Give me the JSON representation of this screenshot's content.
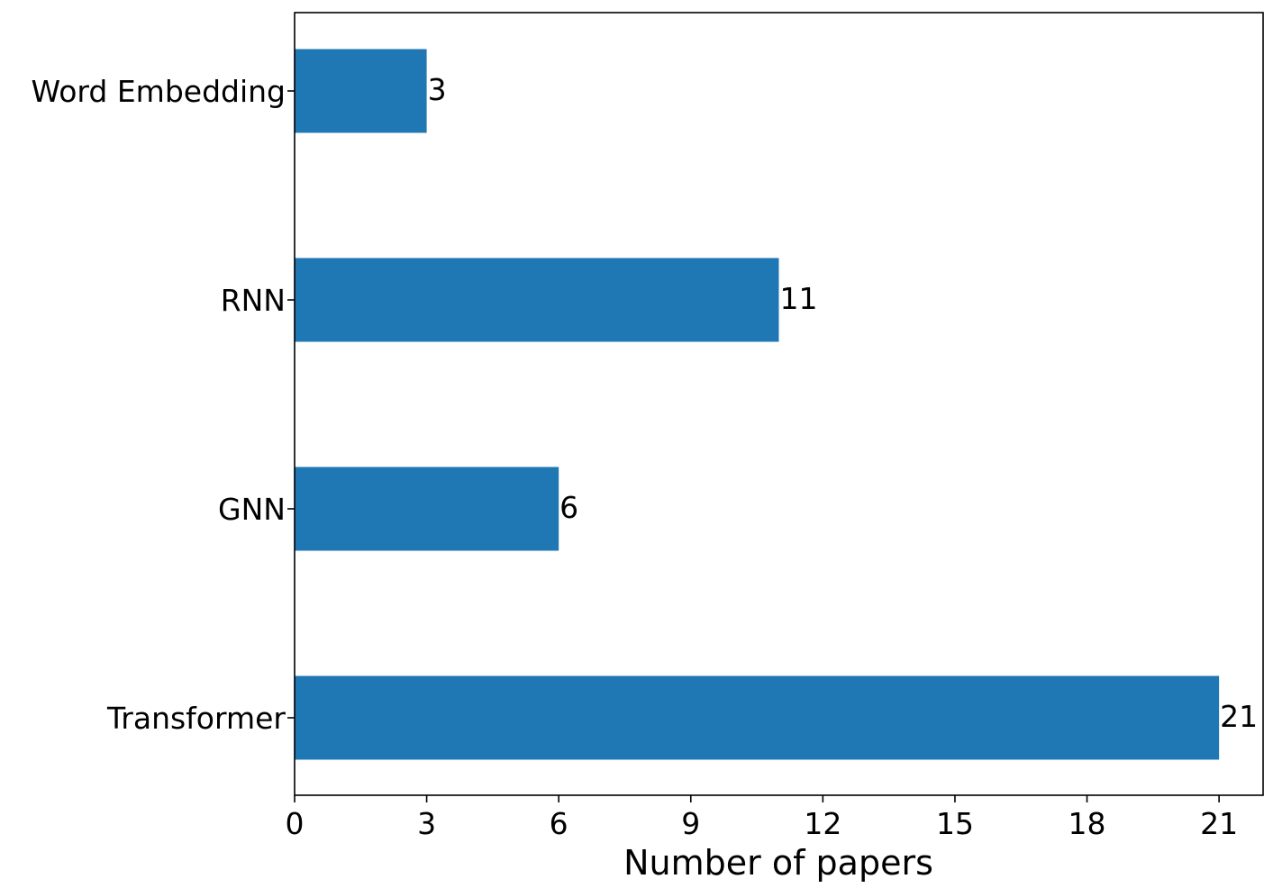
{
  "chart_data": {
    "type": "bar",
    "orientation": "horizontal",
    "categories": [
      "Word Embedding",
      "RNN",
      "GNN",
      "Transformer"
    ],
    "values": [
      3,
      11,
      6,
      21
    ],
    "data_labels": [
      "3",
      "11",
      "6",
      "21"
    ],
    "title": "",
    "xlabel": "Number of papers",
    "ylabel": "",
    "xlim": [
      0,
      22
    ],
    "x_ticks": [
      0,
      3,
      6,
      9,
      12,
      15,
      18,
      21
    ],
    "x_tick_labels": [
      "0",
      "3",
      "6",
      "9",
      "12",
      "15",
      "18",
      "21"
    ],
    "grid": false,
    "legend": "none",
    "bar_color": "#1f77b4"
  }
}
